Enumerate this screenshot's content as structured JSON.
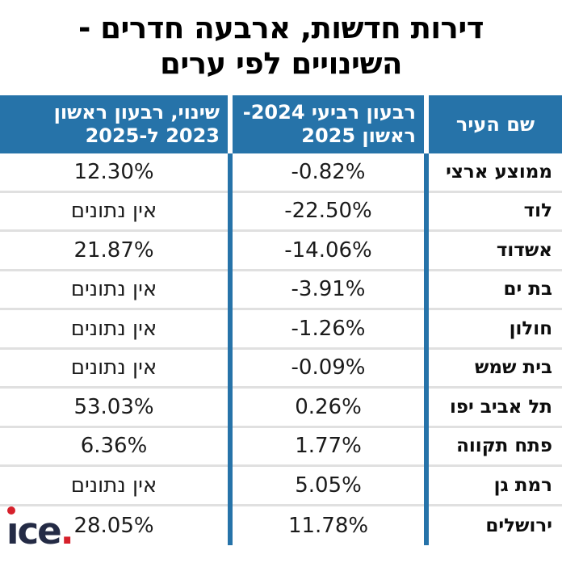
{
  "title": {
    "line1": "דירות חדשות, ארבעה חדרים -",
    "line2": "השינויים לפי ערים"
  },
  "table": {
    "headers": {
      "city": "שם העיר",
      "quarter_line1": "רבעון רביעי 2024-",
      "quarter_line2": "ראשון 2025",
      "change_line1": "שינוי, רבעון ראשון",
      "change_line2": "2023 ל-2025"
    },
    "no_data_label": "אין נתונים",
    "rows": [
      {
        "city": "ממוצע ארצי",
        "quarter": "-0.82%",
        "change": "12.30%"
      },
      {
        "city": "לוד",
        "quarter": "-22.50%",
        "change": "אין נתונים"
      },
      {
        "city": "אשדוד",
        "quarter": "-14.06%",
        "change": "21.87%"
      },
      {
        "city": "בת ים",
        "quarter": "-3.91%",
        "change": "אין נתונים"
      },
      {
        "city": "חולון",
        "quarter": "-1.26%",
        "change": "אין נתונים"
      },
      {
        "city": "בית שמש",
        "quarter": "-0.09%",
        "change": "אין נתונים"
      },
      {
        "city": "תל אביב יפו",
        "quarter": "0.26%",
        "change": "53.03%"
      },
      {
        "city": "פתח תקווה",
        "quarter": "1.77%",
        "change": "6.36%"
      },
      {
        "city": "רמת גן",
        "quarter": "5.05%",
        "change": "אין נתונים"
      },
      {
        "city": "ירושלים",
        "quarter": "11.78%",
        "change": "28.05%"
      }
    ]
  },
  "logo": {
    "text": "ice.",
    "stem": "ı",
    "rest": "ce",
    "period": "."
  },
  "colors": {
    "header_blue": "#2673a9",
    "divider_blue": "#2673a9",
    "row_line": "#e0e0e0",
    "logo_navy": "#242b45",
    "logo_red": "#d6202b"
  },
  "chart_data": {
    "type": "table",
    "title": "דירות חדשות, ארבעה חדרים - השינויים לפי ערים",
    "columns": [
      "שם העיר",
      "רבעון רביעי 2024- ראשון 2025",
      "שינוי, רבעון ראשון 2023 ל-2025"
    ],
    "rows": [
      [
        "ממוצע ארצי",
        "-0.82%",
        "12.30%"
      ],
      [
        "לוד",
        "-22.50%",
        "אין נתונים"
      ],
      [
        "אשדוד",
        "-14.06%",
        "21.87%"
      ],
      [
        "בת ים",
        "-3.91%",
        "אין נתונים"
      ],
      [
        "חולון",
        "-1.26%",
        "אין נתונים"
      ],
      [
        "בית שמש",
        "-0.09%",
        "אין נתונים"
      ],
      [
        "תל אביב יפו",
        "0.26%",
        "53.03%"
      ],
      [
        "פתח תקווה",
        "1.77%",
        "6.36%"
      ],
      [
        "רמת גן",
        "5.05%",
        "אין נתונים"
      ],
      [
        "ירושלים",
        "11.78%",
        "28.05%"
      ]
    ]
  }
}
